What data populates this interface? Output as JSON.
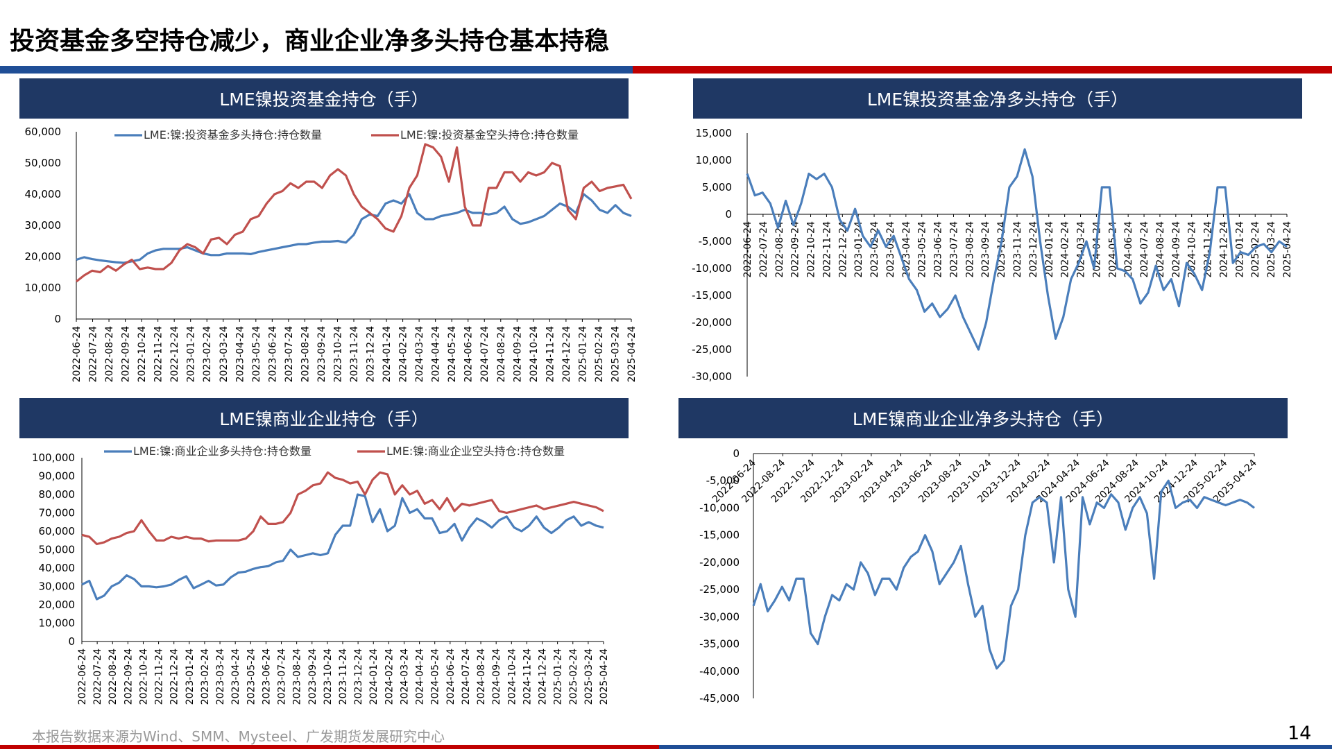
{
  "page": {
    "title": "投资基金多空持仓减少，商业企业净多头持仓基本持稳",
    "footer": "本报告数据来源为Wind、SMM、Mysteel、广发期货发展研究中心",
    "page_number": "14",
    "colors": {
      "header_bg": "#1f3864",
      "blue_series": "#4a7ebb",
      "red_series": "#c0504d",
      "band_blue": "#1f4e96",
      "band_red": "#c00000"
    }
  },
  "date_ticks": [
    "2022-06-24",
    "2022-07-24",
    "2022-08-24",
    "2022-09-24",
    "2022-10-24",
    "2022-11-24",
    "2022-12-24",
    "2023-01-24",
    "2023-02-24",
    "2023-03-24",
    "2023-04-24",
    "2023-05-24",
    "2023-06-24",
    "2023-07-24",
    "2023-08-24",
    "2023-09-24",
    "2023-10-24",
    "2023-11-24",
    "2023-12-24",
    "2024-01-24",
    "2024-02-24",
    "2024-03-24",
    "2024-04-24",
    "2024-05-24",
    "2024-06-24",
    "2024-07-24",
    "2024-08-24",
    "2024-09-24",
    "2024-10-24",
    "2024-11-24",
    "2024-12-24",
    "2025-01-24",
    "2025-02-24",
    "2025-03-24",
    "2025-04-24"
  ],
  "date_ticks_bimonthly": [
    "2022-06-24",
    "2022-08-24",
    "2022-10-24",
    "2022-12-24",
    "2023-02-24",
    "2023-04-24",
    "2023-06-24",
    "2023-08-24",
    "2023-10-24",
    "2023-12-24",
    "2024-02-24",
    "2024-04-24",
    "2024-06-24",
    "2024-08-24",
    "2024-10-24",
    "2024-12-24",
    "2025-02-24",
    "2025-04-24"
  ],
  "chart_data": [
    {
      "id": "fund",
      "type": "line",
      "title": "LME镍投资基金持仓（手）",
      "ylim": [
        0,
        60000
      ],
      "yticks": [
        0,
        10000,
        20000,
        30000,
        40000,
        50000,
        60000
      ],
      "ytick_labels": [
        "0",
        "10,000",
        "20,000",
        "30,000",
        "40,000",
        "50,000",
        "60,000"
      ],
      "legend_position": "top",
      "series": [
        {
          "name": "LME:镍:投资基金多头持仓:持仓数量",
          "color": "#4a7ebb",
          "x": [
            0,
            0.5,
            1,
            1.5,
            2,
            2.5,
            3,
            3.5,
            4,
            4.5,
            5,
            5.5,
            6,
            6.5,
            7,
            7.5,
            8,
            8.5,
            9,
            9.5,
            10,
            10.5,
            11,
            11.5,
            12,
            12.5,
            13,
            13.5,
            14,
            14.5,
            15,
            15.5,
            16,
            16.5,
            17,
            17.5,
            18,
            18.5,
            19,
            19.5,
            20,
            20.5,
            21,
            21.5,
            22,
            22.5,
            23,
            23.5,
            24,
            24.5,
            25,
            25.5,
            26,
            26.5,
            27,
            27.5,
            28,
            28.5,
            29,
            29.5,
            30,
            30.5,
            31,
            31.5,
            32,
            32.5,
            33,
            33.5,
            34,
            34.5,
            35
          ],
          "y": [
            19000,
            19800,
            19200,
            18800,
            18500,
            18200,
            18000,
            18500,
            19000,
            21000,
            22000,
            22500,
            22500,
            22500,
            23000,
            22000,
            21000,
            20500,
            20500,
            21000,
            21000,
            21000,
            20800,
            21500,
            22000,
            22500,
            23000,
            23500,
            24000,
            24000,
            24500,
            24800,
            24800,
            25000,
            24500,
            27000,
            32000,
            33500,
            33000,
            37000,
            38000,
            37000,
            40000,
            34000,
            32000,
            32000,
            33000,
            33500,
            34000,
            35000,
            34000,
            34000,
            33500,
            34000,
            36000,
            32000,
            30500,
            31000,
            32000,
            33000,
            35000,
            37000,
            36000,
            34000,
            40000,
            38000,
            35000,
            34000,
            36500,
            34000,
            33000
          ]
        },
        {
          "name": "LME:镍:投资基金空头持仓:持仓数量",
          "color": "#c0504d",
          "x": [
            0,
            0.5,
            1,
            1.5,
            2,
            2.5,
            3,
            3.5,
            4,
            4.5,
            5,
            5.5,
            6,
            6.5,
            7,
            7.5,
            8,
            8.5,
            9,
            9.5,
            10,
            10.5,
            11,
            11.5,
            12,
            12.5,
            13,
            13.5,
            14,
            14.5,
            15,
            15.5,
            16,
            16.5,
            17,
            17.5,
            18,
            18.5,
            19,
            19.5,
            20,
            20.5,
            21,
            21.5,
            22,
            22.5,
            23,
            23.5,
            24,
            24.5,
            25,
            25.5,
            26,
            26.5,
            27,
            27.5,
            28,
            28.5,
            29,
            29.5,
            30,
            30.5,
            31,
            31.5,
            32,
            32.5,
            33,
            33.5,
            34,
            34.5,
            35
          ],
          "y": [
            12000,
            14000,
            15500,
            15000,
            17000,
            15500,
            17500,
            19000,
            16000,
            16500,
            16000,
            16000,
            18000,
            22000,
            24000,
            23000,
            21000,
            25500,
            26000,
            24000,
            27000,
            28000,
            32000,
            33000,
            37000,
            40000,
            41000,
            43500,
            42000,
            44000,
            44000,
            42000,
            46000,
            48000,
            46000,
            40000,
            36000,
            34000,
            32000,
            29000,
            28000,
            33000,
            42000,
            46000,
            56000,
            55000,
            52000,
            44000,
            55000,
            36000,
            30000,
            30000,
            42000,
            42000,
            47000,
            47000,
            44000,
            47000,
            46000,
            47000,
            50000,
            49000,
            35000,
            32000,
            42000,
            44000,
            41000,
            42000,
            42500,
            43000,
            38500
          ]
        }
      ]
    },
    {
      "id": "fund_net",
      "type": "line",
      "title": "LME镍投资基金净多头持仓（手）",
      "ylim": [
        -30000,
        15000
      ],
      "yticks": [
        -30000,
        -25000,
        -20000,
        -15000,
        -10000,
        -5000,
        0,
        5000,
        10000,
        15000
      ],
      "ytick_labels": [
        "-30,000",
        "-25,000",
        "-20,000",
        "-15,000",
        "-10,000",
        "-5,000",
        "0",
        "5,000",
        "10,000",
        "15,000"
      ],
      "series": [
        {
          "name": "",
          "color": "#4a7ebb",
          "x": [
            0,
            0.5,
            1,
            1.5,
            2,
            2.5,
            3,
            3.5,
            4,
            4.5,
            5,
            5.5,
            6,
            6.5,
            7,
            7.5,
            8,
            8.5,
            9,
            9.5,
            10,
            10.5,
            11,
            11.5,
            12,
            12.5,
            13,
            13.5,
            14,
            14.5,
            15,
            15.5,
            16,
            16.5,
            17,
            17.5,
            18,
            18.5,
            19,
            19.5,
            20,
            20.5,
            21,
            21.5,
            22,
            22.5,
            23,
            23.5,
            24,
            24.5,
            25,
            25.5,
            26,
            26.5,
            27,
            27.5,
            28,
            28.5,
            29,
            29.5,
            30,
            30.5,
            31,
            31.5,
            32,
            32.5,
            33,
            33.5,
            34,
            34.5,
            35
          ],
          "y": [
            7500,
            3500,
            4000,
            2000,
            -2500,
            2500,
            -2000,
            2000,
            7500,
            6500,
            7500,
            5000,
            -1000,
            -3000,
            1000,
            -4000,
            -6000,
            -3000,
            -6000,
            -4000,
            -8000,
            -12000,
            -14000,
            -18000,
            -16500,
            -19000,
            -17500,
            -15000,
            -19000,
            -22000,
            -25000,
            -20000,
            -12000,
            -5000,
            5000,
            7000,
            12000,
            7000,
            -5000,
            -15000,
            -23000,
            -19000,
            -12000,
            -9000,
            -5000,
            -10000,
            5000,
            5000,
            -10000,
            -10500,
            -12000,
            -16500,
            -14500,
            -9500,
            -14000,
            -12000,
            -17000,
            -9000,
            -11000,
            -14000,
            -7000,
            5000,
            5000,
            -9000,
            -7000,
            -7500,
            -6000,
            -5500,
            -7000,
            -5000,
            -6000
          ]
        }
      ]
    },
    {
      "id": "comm",
      "type": "line",
      "title": "LME镍商业企业持仓（手）",
      "ylim": [
        0,
        100000
      ],
      "yticks": [
        0,
        10000,
        20000,
        30000,
        40000,
        50000,
        60000,
        70000,
        80000,
        90000,
        100000
      ],
      "ytick_labels": [
        "0",
        "10,000",
        "20,000",
        "30,000",
        "40,000",
        "50,000",
        "60,000",
        "70,000",
        "80,000",
        "90,000",
        "100,000"
      ],
      "legend_position": "top",
      "series": [
        {
          "name": "LME:镍:商业企业多头持仓:持仓数量",
          "color": "#4a7ebb",
          "x": [
            0,
            0.5,
            1,
            1.5,
            2,
            2.5,
            3,
            3.5,
            4,
            4.5,
            5,
            5.5,
            6,
            6.5,
            7,
            7.5,
            8,
            8.5,
            9,
            9.5,
            10,
            10.5,
            11,
            11.5,
            12,
            12.5,
            13,
            13.5,
            14,
            14.5,
            15,
            15.5,
            16,
            16.5,
            17,
            17.5,
            18,
            18.5,
            19,
            19.5,
            20,
            20.5,
            21,
            21.5,
            22,
            22.5,
            23,
            23.5,
            24,
            24.5,
            25,
            25.5,
            26,
            26.5,
            27,
            27.5,
            28,
            28.5,
            29,
            29.5,
            30,
            30.5,
            31,
            31.5,
            32,
            32.5,
            33,
            33.5,
            34,
            34.5,
            35
          ],
          "y": [
            31000,
            33000,
            23000,
            25000,
            30000,
            32000,
            36000,
            34000,
            30000,
            30000,
            29500,
            30000,
            31000,
            33500,
            35500,
            29000,
            31000,
            33000,
            30500,
            31000,
            35000,
            37500,
            38000,
            39500,
            40500,
            41000,
            43000,
            44000,
            50000,
            46000,
            47000,
            48000,
            47000,
            48000,
            58000,
            63000,
            63000,
            80000,
            79000,
            65000,
            72000,
            60000,
            63000,
            78000,
            70000,
            72000,
            67000,
            67000,
            59000,
            60000,
            64000,
            55000,
            62000,
            67000,
            65000,
            62000,
            66000,
            68000,
            62000,
            60000,
            63000,
            68000,
            62000,
            59000,
            62000,
            66000,
            68000,
            63000,
            65000,
            63000,
            62000
          ]
        },
        {
          "name": "LME:镍:商业企业空头持仓:持仓数量",
          "color": "#c0504d",
          "x": [
            0,
            0.5,
            1,
            1.5,
            2,
            2.5,
            3,
            3.5,
            4,
            4.5,
            5,
            5.5,
            6,
            6.5,
            7,
            7.5,
            8,
            8.5,
            9,
            9.5,
            10,
            10.5,
            11,
            11.5,
            12,
            12.5,
            13,
            13.5,
            14,
            14.5,
            15,
            15.5,
            16,
            16.5,
            17,
            17.5,
            18,
            18.5,
            19,
            19.5,
            20,
            20.5,
            21,
            21.5,
            22,
            22.5,
            23,
            23.5,
            24,
            24.5,
            25,
            25.5,
            26,
            26.5,
            27,
            27.5,
            28,
            28.5,
            29,
            29.5,
            30,
            30.5,
            31,
            31.5,
            32,
            32.5,
            33,
            33.5,
            34,
            34.5,
            35
          ],
          "y": [
            58000,
            57000,
            53000,
            54000,
            56000,
            57000,
            59000,
            60000,
            66000,
            60000,
            55000,
            55000,
            57000,
            56000,
            57000,
            56000,
            56000,
            54500,
            55000,
            55000,
            55000,
            55000,
            56000,
            60000,
            68000,
            64000,
            64000,
            65000,
            70000,
            80000,
            82000,
            85000,
            86000,
            92000,
            89000,
            88000,
            86000,
            87000,
            80000,
            88000,
            92000,
            91000,
            80000,
            85000,
            80000,
            82000,
            75000,
            77000,
            72000,
            78000,
            71000,
            75000,
            74000,
            75000,
            76000,
            77000,
            71000,
            70000,
            71000,
            72000,
            73000,
            74000,
            72000,
            73000,
            74000,
            75000,
            76000,
            75000,
            74000,
            73000,
            71000
          ]
        }
      ]
    },
    {
      "id": "comm_net",
      "type": "line",
      "title": "LME镍商业企业净多头持仓（手）",
      "ylim": [
        -45000,
        0
      ],
      "yticks": [
        -45000,
        -40000,
        -35000,
        -30000,
        -25000,
        -20000,
        -15000,
        -10000,
        -5000,
        0
      ],
      "ytick_labels": [
        "-45,000",
        "-40,000",
        "-35,000",
        "-30,000",
        "-25,000",
        "-20,000",
        "-15,000",
        "-10,000",
        "-5,000",
        "0"
      ],
      "series": [
        {
          "name": "",
          "color": "#4a7ebb",
          "x": [
            0,
            0.5,
            1,
            1.5,
            2,
            2.5,
            3,
            3.5,
            4,
            4.5,
            5,
            5.5,
            6,
            6.5,
            7,
            7.5,
            8,
            8.5,
            9,
            9.5,
            10,
            10.5,
            11,
            11.5,
            12,
            12.5,
            13,
            13.5,
            14,
            14.5,
            15,
            15.5,
            16,
            16.5,
            17,
            17.5,
            18,
            18.5,
            19,
            19.5,
            20,
            20.5,
            21,
            21.5,
            22,
            22.5,
            23,
            23.5,
            24,
            24.5,
            25,
            25.5,
            26,
            26.5,
            27,
            27.5,
            28,
            28.5,
            29,
            29.5,
            30,
            30.5,
            31,
            31.5,
            32,
            32.5,
            33,
            33.5,
            34,
            34.5,
            35
          ],
          "y": [
            -28000,
            -24000,
            -29000,
            -27000,
            -24500,
            -27000,
            -23000,
            -23000,
            -33000,
            -35000,
            -30000,
            -26000,
            -27000,
            -24000,
            -25000,
            -20000,
            -22000,
            -26000,
            -23000,
            -23000,
            -25000,
            -21000,
            -19000,
            -18000,
            -15000,
            -18000,
            -24000,
            -22000,
            -20000,
            -17000,
            -24000,
            -30000,
            -28000,
            -36000,
            -39500,
            -38000,
            -28000,
            -25000,
            -15000,
            -9000,
            -8000,
            -9000,
            -20000,
            -8000,
            -25000,
            -30000,
            -8000,
            -13000,
            -9000,
            -10000,
            -7500,
            -9000,
            -14000,
            -10000,
            -8000,
            -11000,
            -23000,
            -7000,
            -5000,
            -10000,
            -9000,
            -8500,
            -10000,
            -8000,
            -8500,
            -9000,
            -9500,
            -9000,
            -8500,
            -9000,
            -10000
          ]
        }
      ]
    }
  ]
}
